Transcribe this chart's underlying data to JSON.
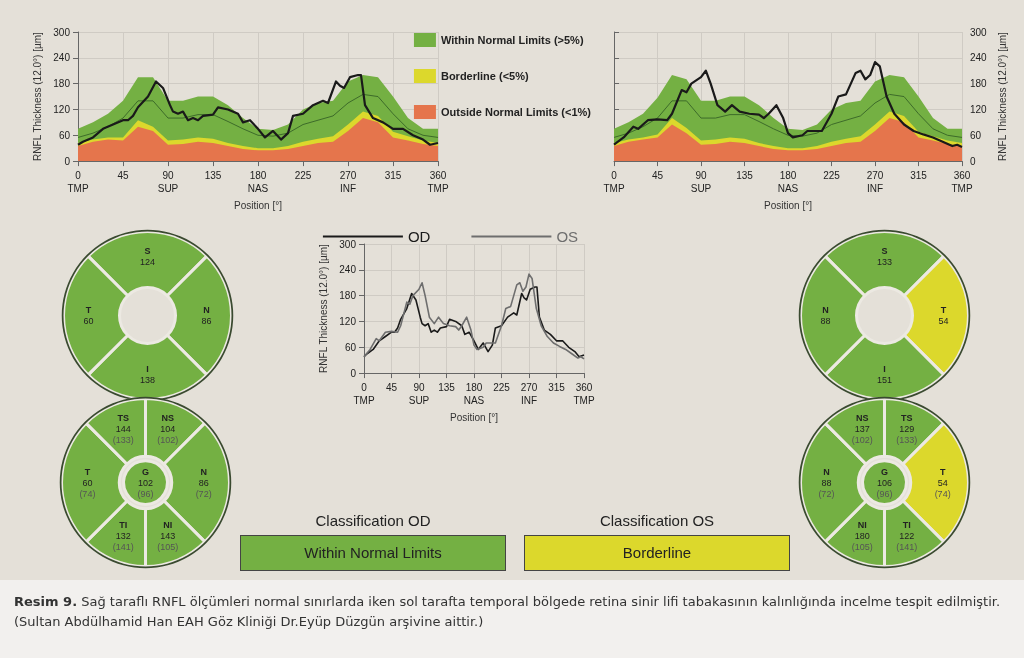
{
  "chart_data": [
    {
      "type": "area",
      "stacked": true,
      "xlabel": "Position [°]",
      "ylabel": "RNFL Thickness (12.0°) [µm]",
      "xlim": [
        0,
        360
      ],
      "ylim": [
        0,
        300
      ],
      "xticks": [
        {
          "value": 0,
          "label": "0\nTMP"
        },
        45,
        {
          "value": 90,
          "label": "90\nSUP"
        },
        135,
        {
          "value": 180,
          "label": "180\nNAS"
        },
        225,
        {
          "value": 270,
          "label": "270\nINF"
        },
        315,
        {
          "value": 360,
          "label": "360\nTMP"
        }
      ],
      "yticks": [
        0,
        60,
        120,
        180,
        240,
        300
      ],
      "grid": true,
      "legend": "top right",
      "marker": "none",
      "x": [
        0,
        15,
        30,
        45,
        60,
        75,
        90,
        105,
        120,
        135,
        150,
        165,
        180,
        195,
        210,
        225,
        240,
        255,
        270,
        285,
        300,
        315,
        330,
        345,
        360
      ],
      "series": [
        {
          "name": "Outside Normal Limits (<1%)",
          "color": "#e5754c",
          "values": [
            35,
            45,
            50,
            48,
            80,
            70,
            38,
            40,
            45,
            42,
            35,
            28,
            25,
            25,
            28,
            35,
            42,
            45,
            70,
            100,
            90,
            55,
            48,
            40,
            35
          ]
        },
        {
          "name": "Borderline (<5%)",
          "color": "#dcd82c",
          "values": [
            7,
            5,
            5,
            7,
            15,
            10,
            10,
            10,
            10,
            10,
            7,
            7,
            5,
            5,
            7,
            10,
            10,
            13,
            15,
            15,
            15,
            13,
            10,
            8,
            7
          ]
        },
        {
          "name": "Within Normal Limits (>5%)",
          "color": "#74b043",
          "values": [
            33,
            40,
            55,
            85,
            100,
            115,
            92,
            90,
            95,
            98,
            88,
            65,
            45,
            42,
            50,
            75,
            83,
            82,
            100,
            85,
            90,
            82,
            42,
            27,
            33
          ]
        },
        {
          "type": "line",
          "color": "#3d6b2a",
          "values": [
            55,
            65,
            80,
            100,
            140,
            140,
            100,
            100,
            108,
            108,
            92,
            75,
            60,
            58,
            65,
            85,
            95,
            105,
            135,
            155,
            150,
            110,
            75,
            60,
            55
          ]
        },
        {
          "type": "line",
          "color": "#1a1a1a",
          "x": [
            0,
            5,
            15,
            25,
            35,
            45,
            50,
            55,
            60,
            70,
            78,
            85,
            92,
            95,
            100,
            105,
            110,
            115,
            120,
            125,
            135,
            140,
            150,
            160,
            165,
            172,
            180,
            187,
            195,
            203,
            210,
            215,
            225,
            235,
            245,
            250,
            258,
            262,
            266,
            272,
            280,
            283,
            287,
            295,
            305,
            315,
            325,
            335,
            345,
            352,
            360
          ],
          "values": [
            38,
            45,
            55,
            75,
            85,
            95,
            95,
            105,
            125,
            150,
            185,
            170,
            130,
            115,
            110,
            115,
            95,
            100,
            95,
            105,
            108,
            125,
            120,
            110,
            90,
            95,
            75,
            55,
            70,
            50,
            65,
            105,
            110,
            130,
            140,
            135,
            185,
            175,
            170,
            195,
            200,
            200,
            130,
            100,
            90,
            75,
            75,
            60,
            50,
            38,
            42
          ]
        }
      ]
    },
    {
      "type": "area",
      "stacked": true,
      "xlabel": "Position [°]",
      "ylabel": "RNFL Thickness (12.0°) [µm]",
      "xlim": [
        0,
        360
      ],
      "ylim": [
        0,
        300
      ],
      "xticks": [
        {
          "value": 0,
          "label": "0\nTMP"
        },
        45,
        {
          "value": 90,
          "label": "90\nSUP"
        },
        135,
        {
          "value": 180,
          "label": "180\nNAS"
        },
        225,
        {
          "value": 270,
          "label": "270\nINF"
        },
        315,
        {
          "value": 360,
          "label": "360\nTMP"
        }
      ],
      "yticks": [
        0,
        60,
        120,
        180,
        240,
        300
      ],
      "grid": true,
      "marker": "none",
      "x": [
        0,
        15,
        30,
        45,
        60,
        75,
        90,
        105,
        120,
        135,
        150,
        165,
        180,
        195,
        210,
        225,
        240,
        255,
        270,
        285,
        300,
        315,
        330,
        345,
        360
      ],
      "series": [
        {
          "color": "#e5754c",
          "values": [
            35,
            45,
            50,
            55,
            85,
            65,
            38,
            40,
            45,
            42,
            35,
            28,
            25,
            25,
            28,
            35,
            42,
            45,
            70,
            100,
            90,
            55,
            48,
            40,
            35
          ]
        },
        {
          "color": "#dcd82c",
          "values": [
            7,
            5,
            5,
            7,
            15,
            12,
            10,
            10,
            10,
            10,
            7,
            7,
            5,
            5,
            7,
            10,
            10,
            13,
            15,
            15,
            15,
            13,
            10,
            8,
            7
          ]
        },
        {
          "color": "#74b043",
          "values": [
            33,
            40,
            55,
            85,
            100,
            113,
            92,
            90,
            95,
            98,
            88,
            65,
            45,
            42,
            50,
            75,
            83,
            82,
            100,
            85,
            90,
            82,
            42,
            27,
            33
          ]
        },
        {
          "type": "line",
          "color": "#3d6b2a",
          "values": [
            55,
            65,
            80,
            100,
            140,
            140,
            100,
            100,
            108,
            108,
            92,
            75,
            60,
            58,
            65,
            85,
            95,
            105,
            135,
            155,
            150,
            110,
            75,
            60,
            55
          ]
        },
        {
          "type": "line",
          "color": "#1a1a1a",
          "x": [
            0,
            10,
            20,
            25,
            35,
            45,
            55,
            60,
            70,
            75,
            80,
            90,
            95,
            100,
            107,
            115,
            122,
            130,
            140,
            150,
            155,
            160,
            168,
            175,
            180,
            185,
            195,
            200,
            215,
            225,
            232,
            240,
            250,
            255,
            260,
            265,
            270,
            275,
            282,
            290,
            300,
            310,
            320,
            330,
            340,
            350,
            355,
            360
          ],
          "values": [
            38,
            55,
            80,
            75,
            95,
            97,
            95,
            110,
            165,
            160,
            180,
            195,
            210,
            180,
            130,
            115,
            130,
            115,
            110,
            108,
            100,
            110,
            130,
            100,
            65,
            55,
            60,
            70,
            70,
            110,
            150,
            155,
            205,
            210,
            190,
            200,
            230,
            220,
            150,
            110,
            85,
            70,
            62,
            55,
            45,
            35,
            38,
            33
          ]
        }
      ]
    },
    {
      "type": "line",
      "xlabel": "Position [°]",
      "ylabel": "RNFL Thickness (12.0°) [µm]",
      "xlim": [
        0,
        360
      ],
      "ylim": [
        0,
        300
      ],
      "xticks": [
        {
          "value": 0,
          "label": "0\nTMP"
        },
        45,
        {
          "value": 90,
          "label": "90\nSUP"
        },
        135,
        {
          "value": 180,
          "label": "180\nNAS"
        },
        225,
        {
          "value": 270,
          "label": "270\nINF"
        },
        315,
        {
          "value": 360,
          "label": "360\nTMP"
        }
      ],
      "yticks": [
        0,
        60,
        120,
        180,
        240,
        300
      ],
      "grid": true,
      "legend": "top",
      "marker": "none",
      "series": [
        {
          "name": "OD",
          "color": "#1a1a1a",
          "x": [
            0,
            5,
            15,
            25,
            35,
            45,
            50,
            55,
            60,
            70,
            78,
            85,
            92,
            95,
            100,
            105,
            110,
            115,
            120,
            125,
            135,
            140,
            150,
            160,
            165,
            172,
            180,
            187,
            195,
            203,
            210,
            215,
            225,
            235,
            245,
            250,
            258,
            262,
            266,
            272,
            280,
            283,
            287,
            295,
            305,
            315,
            325,
            335,
            345,
            352,
            360
          ],
          "values": [
            38,
            45,
            55,
            75,
            85,
            95,
            95,
            105,
            125,
            150,
            185,
            170,
            130,
            115,
            110,
            115,
            95,
            100,
            95,
            105,
            108,
            125,
            120,
            110,
            90,
            95,
            75,
            55,
            70,
            50,
            65,
            105,
            110,
            130,
            140,
            135,
            185,
            175,
            170,
            195,
            200,
            200,
            130,
            100,
            90,
            75,
            75,
            60,
            50,
            38,
            42
          ]
        },
        {
          "name": "OS",
          "color": "#6e6e6e",
          "x": [
            0,
            10,
            20,
            25,
            35,
            45,
            55,
            60,
            70,
            75,
            80,
            90,
            95,
            100,
            107,
            115,
            122,
            130,
            140,
            150,
            155,
            160,
            168,
            175,
            180,
            185,
            195,
            200,
            215,
            225,
            232,
            240,
            250,
            255,
            260,
            265,
            270,
            275,
            282,
            290,
            300,
            310,
            320,
            330,
            340,
            350,
            355,
            360
          ],
          "values": [
            38,
            55,
            80,
            75,
            95,
            97,
            95,
            110,
            165,
            160,
            180,
            195,
            210,
            180,
            130,
            115,
            130,
            115,
            110,
            108,
            100,
            110,
            130,
            100,
            65,
            55,
            60,
            70,
            70,
            110,
            150,
            155,
            205,
            210,
            190,
            200,
            230,
            220,
            150,
            110,
            85,
            70,
            62,
            55,
            45,
            35,
            38,
            33
          ]
        }
      ]
    },
    {
      "type": "other",
      "data_labels": true,
      "categories": [
        "S",
        "N",
        "I",
        "T"
      ],
      "values": [
        124,
        86,
        138,
        60
      ],
      "colors": [
        "#74b043",
        "#74b043",
        "#74b043",
        "#74b043"
      ]
    },
    {
      "type": "other",
      "data_labels": true,
      "categories": [
        "NS",
        "N",
        "NI",
        "TI",
        "T",
        "TS",
        "G"
      ],
      "series": [
        {
          "values": [
            104,
            86,
            143,
            132,
            60,
            144,
            102
          ],
          "colors": [
            "#74b043",
            "#74b043",
            "#74b043",
            "#74b043",
            "#74b043",
            "#74b043",
            "#74b043"
          ]
        },
        {
          "values": [
            102,
            72,
            105,
            141,
            74,
            133,
            96
          ],
          "value_labels": [
            "(102)",
            "(72)",
            "(105)",
            "(141)",
            "(74)",
            "(133)",
            "(96)"
          ]
        }
      ]
    },
    {
      "type": "other",
      "data_labels": true,
      "categories": [
        "S",
        "T",
        "I",
        "N"
      ],
      "values": [
        133,
        54,
        151,
        88
      ],
      "colors": [
        "#74b043",
        "#dcd82c",
        "#74b043",
        "#74b043"
      ]
    },
    {
      "type": "other",
      "data_labels": true,
      "categories": [
        "TS",
        "T",
        "TI",
        "NI",
        "N",
        "NS",
        "G"
      ],
      "series": [
        {
          "values": [
            129,
            54,
            122,
            180,
            88,
            137,
            106
          ],
          "colors": [
            "#74b043",
            "#dcd82c",
            "#74b043",
            "#74b043",
            "#74b043",
            "#74b043",
            "#74b043"
          ]
        },
        {
          "values": [
            133,
            74,
            141,
            105,
            72,
            102,
            96
          ],
          "value_labels": [
            "(133)",
            "(74)",
            "(141)",
            "(105)",
            "(72)",
            "(102)",
            "(96)"
          ]
        }
      ]
    },
    {
      "type": "other",
      "categories": [
        "Classification OD",
        "Classification OS"
      ],
      "value_labels": [
        "Within Normal Limits",
        "Borderline"
      ],
      "colors": [
        "#74b043",
        "#dcd82c"
      ],
      "annotations": [
        "Resim 9. Sağ taraflı RNFL ölçümleri normal sınırlarda iken sol tarafta temporal bölgede retina sinir lifi tabakasının kalınlığında incelme tespit edilmiştir. (Sultan Abdülhamid Han EAH Göz Kliniği Dr.Eyüp Düzgün arşivine aittir.)"
      ]
    }
  ]
}
